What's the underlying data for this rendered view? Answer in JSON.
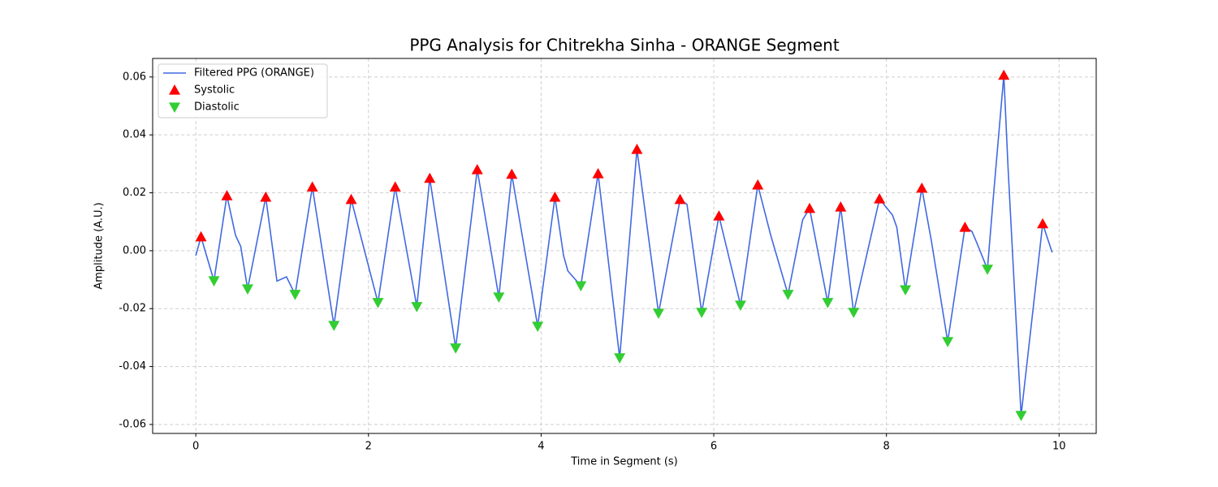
{
  "chart_data": {
    "type": "line",
    "title": "PPG Analysis for Chitrekha Sinha - ORANGE Segment",
    "x_label": "Time in Segment (s)",
    "y_label": "Amplitude (A.U.)",
    "xlim": [
      -0.5,
      10.43
    ],
    "ylim": [
      -0.0631,
      0.0664
    ],
    "xticks": [
      0,
      2,
      4,
      6,
      8,
      10
    ],
    "yticks": [
      -0.06,
      -0.04,
      -0.02,
      {
        "value": 0,
        "label": "0.00"
      },
      0.02,
      0.04,
      0.06
    ],
    "grid": true,
    "legend": "upper left",
    "series": [
      {
        "name": "Filtered PPG (ORANGE)",
        "type": "line",
        "color": "#4169e1",
        "x": [
          0,
          0.06,
          0.21,
          0.36,
          0.46,
          0.52,
          0.6,
          0.81,
          0.94,
          1.05,
          1.15,
          1.35,
          1.6,
          1.8,
          2.11,
          2.31,
          2.56,
          2.71,
          3.01,
          3.26,
          3.51,
          3.66,
          3.96,
          4.16,
          4.26,
          4.31,
          4.46,
          4.66,
          4.91,
          5.11,
          5.36,
          5.61,
          5.69,
          5.86,
          6.06,
          6.31,
          6.51,
          6.66,
          6.86,
          7.03,
          7.11,
          7.32,
          7.47,
          7.62,
          7.92,
          8.07,
          8.12,
          8.22,
          8.41,
          8.52,
          8.71,
          8.91,
          8.99,
          9.05,
          9.17,
          9.24,
          9.36,
          9.41,
          9.56,
          9.81,
          9.92
        ],
        "values": [
          -0.0017,
          0.0048,
          -0.0104,
          0.019,
          0.0053,
          0.0015,
          -0.0132,
          0.0185,
          -0.0105,
          -0.009,
          -0.0151,
          0.022,
          -0.0258,
          0.0177,
          -0.0179,
          0.022,
          -0.0193,
          0.025,
          -0.0336,
          0.028,
          -0.016,
          0.0264,
          -0.0261,
          0.0185,
          -0.0017,
          -0.007,
          -0.0121,
          0.0266,
          -0.037,
          0.035,
          -0.0216,
          0.0177,
          0.016,
          -0.0213,
          0.012,
          -0.0188,
          0.0227,
          0.0053,
          -0.0151,
          0.0107,
          0.0146,
          -0.0179,
          0.0151,
          -0.0213,
          0.0179,
          0.0123,
          0.0081,
          -0.0135,
          0.0216,
          0.0035,
          -0.0314,
          0.0081,
          0.0067,
          0.0025,
          -0.0064,
          0.019,
          0.0606,
          0.028,
          -0.0569,
          0.0093,
          -0.0006
        ]
      },
      {
        "name": "Systolic",
        "type": "scatter",
        "marker": "up",
        "color": "#ff0000",
        "x": [
          0.06,
          0.36,
          0.81,
          1.35,
          1.8,
          2.31,
          2.71,
          3.26,
          3.66,
          4.16,
          4.66,
          5.11,
          5.61,
          6.06,
          6.51,
          7.11,
          7.47,
          7.92,
          8.41,
          8.91,
          9.36,
          9.81
        ],
        "values": [
          0.0048,
          0.019,
          0.0185,
          0.022,
          0.0177,
          0.022,
          0.025,
          0.028,
          0.0264,
          0.0185,
          0.0266,
          0.035,
          0.0177,
          0.012,
          0.0227,
          0.0146,
          0.0151,
          0.0179,
          0.0216,
          0.0081,
          0.0606,
          0.0093
        ]
      },
      {
        "name": "Diastolic",
        "type": "scatter",
        "marker": "down",
        "color": "#32cd32",
        "x": [
          0.21,
          0.6,
          1.15,
          1.6,
          2.11,
          2.56,
          3.01,
          3.51,
          3.96,
          4.46,
          4.91,
          5.36,
          5.86,
          6.31,
          6.86,
          7.32,
          7.62,
          8.22,
          8.71,
          9.17,
          9.56
        ],
        "values": [
          -0.0104,
          -0.0132,
          -0.0151,
          -0.0258,
          -0.0179,
          -0.0193,
          -0.0336,
          -0.016,
          -0.0261,
          -0.0121,
          -0.037,
          -0.0216,
          -0.0213,
          -0.0188,
          -0.0151,
          -0.0179,
          -0.0213,
          -0.0135,
          -0.0314,
          -0.0064,
          -0.0569
        ]
      }
    ]
  }
}
